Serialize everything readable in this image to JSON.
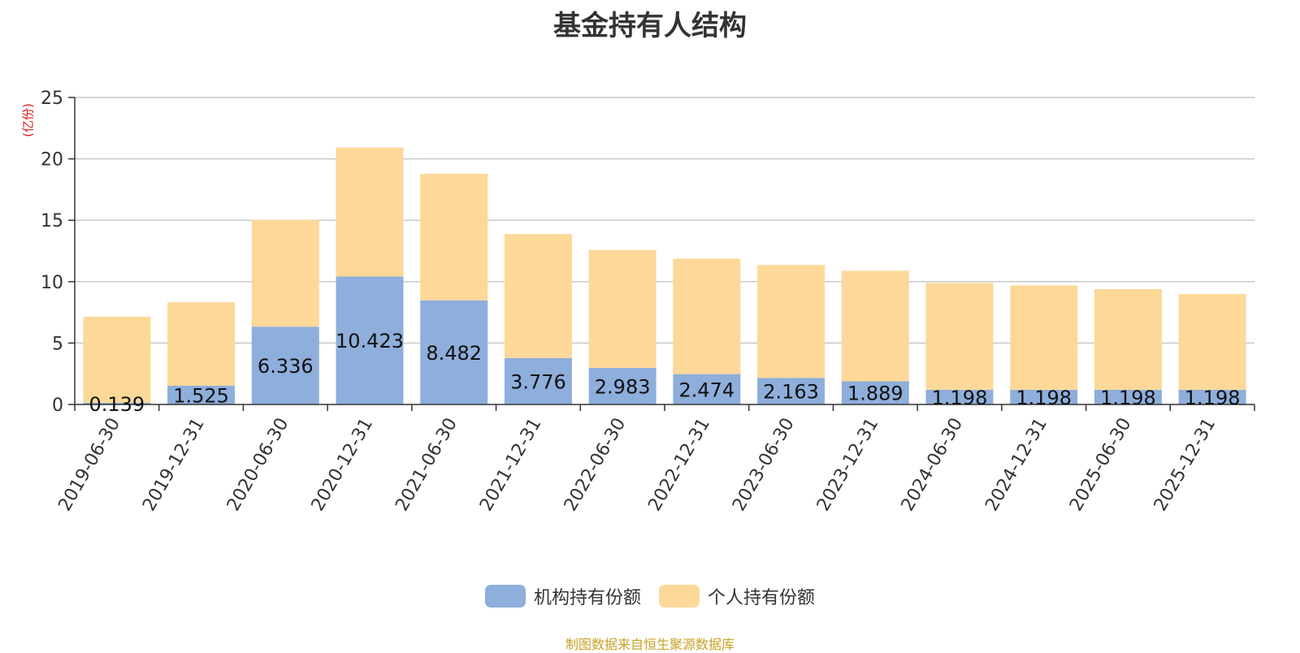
{
  "chart_data": {
    "type": "bar",
    "stacked": true,
    "title": "基金持有人结构",
    "ylabel": "(亿份)",
    "ylim": [
      0,
      25
    ],
    "yticks": [
      0,
      5,
      10,
      15,
      20,
      25
    ],
    "grid": true,
    "legend_position": "bottom",
    "categories": [
      "2019-06-30",
      "2019-12-31",
      "2020-06-30",
      "2020-12-31",
      "2021-06-30",
      "2021-12-31",
      "2022-06-30",
      "2022-12-31",
      "2023-06-30",
      "2023-12-31",
      "2024-06-30",
      "2024-12-31",
      "2025-06-30",
      "2025-12-31"
    ],
    "series": [
      {
        "name": "机构持有份额",
        "color": "#8eaedb",
        "values": [
          0.139,
          1.525,
          6.336,
          10.423,
          8.482,
          3.776,
          2.983,
          2.474,
          2.163,
          1.889,
          1.198,
          1.198,
          1.198,
          1.198
        ],
        "labels": [
          "0.139",
          "1.525",
          "6.336",
          "10.423",
          "8.482",
          "3.776",
          "2.983",
          "2.474",
          "2.163",
          "1.889",
          "1.198",
          "1.198",
          "1.198",
          "1.198"
        ]
      },
      {
        "name": "个人持有份额",
        "color": "#fdd899",
        "values": [
          7.0,
          6.8,
          8.7,
          10.5,
          10.3,
          10.1,
          9.6,
          9.4,
          9.2,
          9.0,
          8.7,
          8.5,
          8.2,
          7.8
        ]
      }
    ]
  },
  "footer": {
    "source": "制图数据来自恒生聚源数据库"
  }
}
